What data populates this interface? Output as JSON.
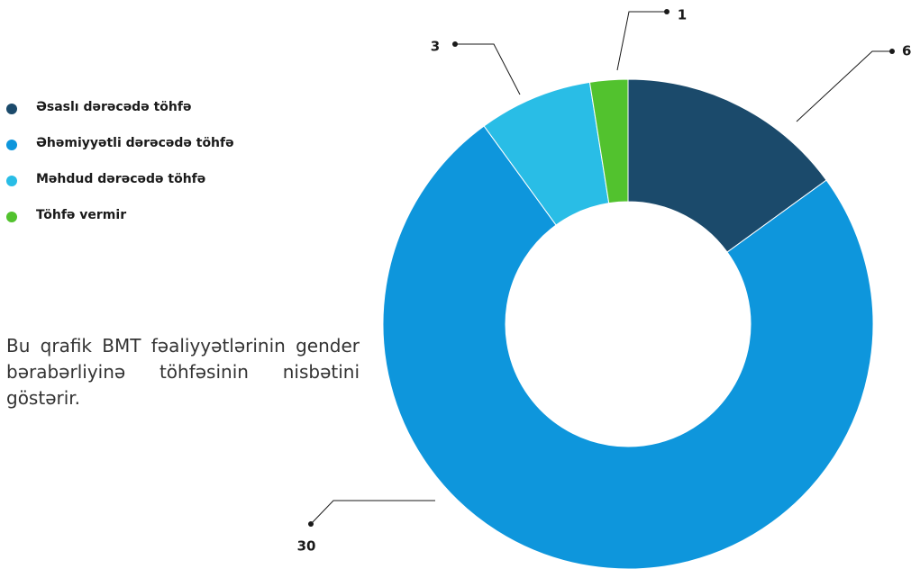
{
  "chart_data": {
    "type": "donut",
    "categories": [
      "Əsaslı dərəcədə töhfə",
      "Əhəmiyyətli dərəcədə töhfə",
      "Məhdud dərəcədə töhfə",
      "Töhfə vermir"
    ],
    "values": [
      6,
      30,
      3,
      1
    ],
    "colors": [
      "#1b4a6b",
      "#0e96dc",
      "#29bde6",
      "#52c22e"
    ],
    "description": "Bu qrafik BMT fəaliyyətlərinin gender bərabərliyinə töhfəsinin nisbətini göstərir."
  }
}
